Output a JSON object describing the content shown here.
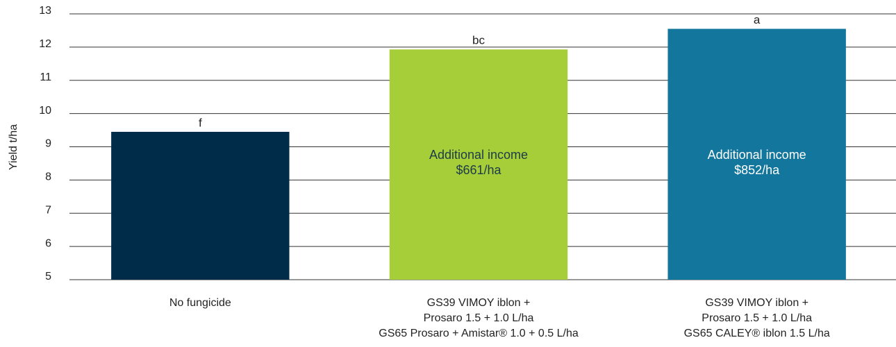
{
  "chart_data": {
    "type": "bar",
    "y_label": "Yield t/ha",
    "categories": [
      [
        "No fungicide"
      ],
      [
        "GS39 VIMOY iblon +",
        "Prosaro  1.5 + 1.0 L/ha",
        "GS65 Prosaro + Amistar® 1.0 + 0.5 L/ha"
      ],
      [
        "GS39 VIMOY iblon +",
        "Prosaro  1.5 + 1.0 L/ha",
        "GS65 CALEY® iblon 1.5 L/ha"
      ]
    ],
    "values": [
      9.45,
      11.93,
      12.55
    ],
    "colors": [
      "#002b49",
      "#a6ce39",
      "#13769c"
    ],
    "significance_letters": [
      "f",
      "bc",
      "a"
    ],
    "bar_notes": [
      null,
      [
        "Additional income",
        "$661/ha"
      ],
      [
        "Additional income",
        "$852/ha"
      ]
    ],
    "ylim": [
      5,
      13
    ],
    "yticks": [
      5,
      6,
      7,
      8,
      9,
      10,
      11,
      12,
      13
    ],
    "grid": true
  }
}
